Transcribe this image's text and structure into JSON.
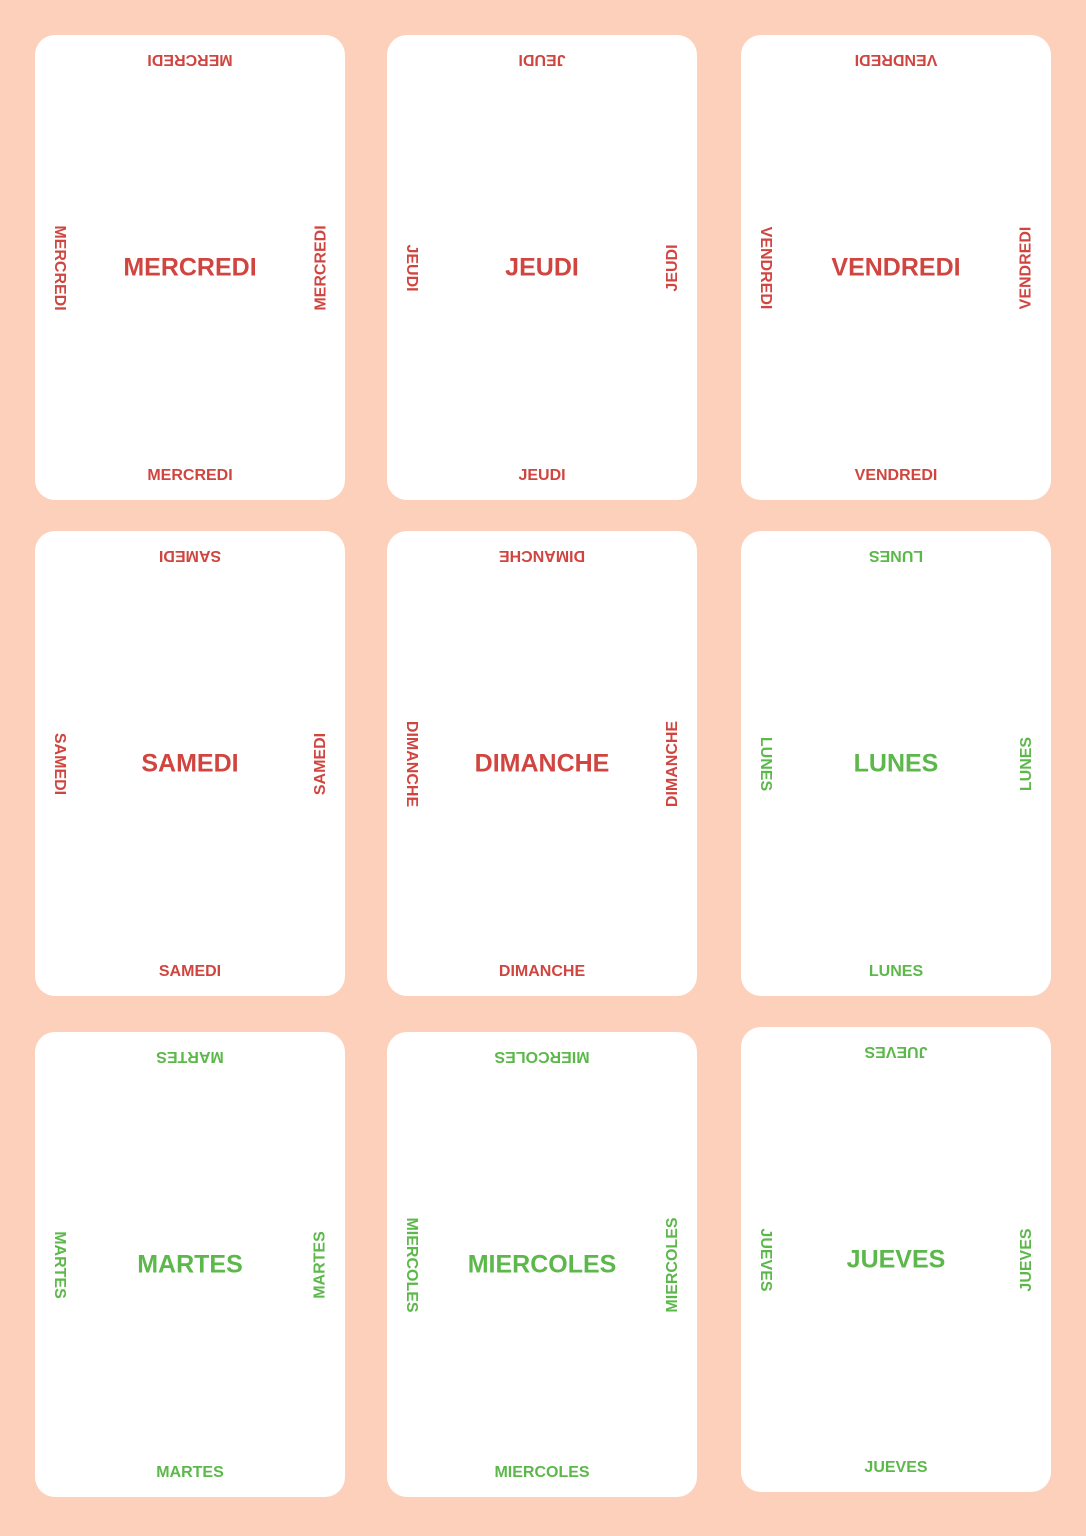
{
  "colors": {
    "background": "#fdd0bb",
    "card": "#ffffff",
    "french": "#d04540",
    "spanish": "#5cb84a"
  },
  "cards": [
    {
      "word": "MERCREDI",
      "color": "red"
    },
    {
      "word": "JEUDI",
      "color": "red"
    },
    {
      "word": "VENDREDI",
      "color": "red"
    },
    {
      "word": "SAMEDI",
      "color": "red"
    },
    {
      "word": "DIMANCHE",
      "color": "red"
    },
    {
      "word": "LUNES",
      "color": "green"
    },
    {
      "word": "MARTES",
      "color": "green"
    },
    {
      "word": "MIERCOLES",
      "color": "green"
    },
    {
      "word": "JUEVES",
      "color": "green"
    }
  ]
}
